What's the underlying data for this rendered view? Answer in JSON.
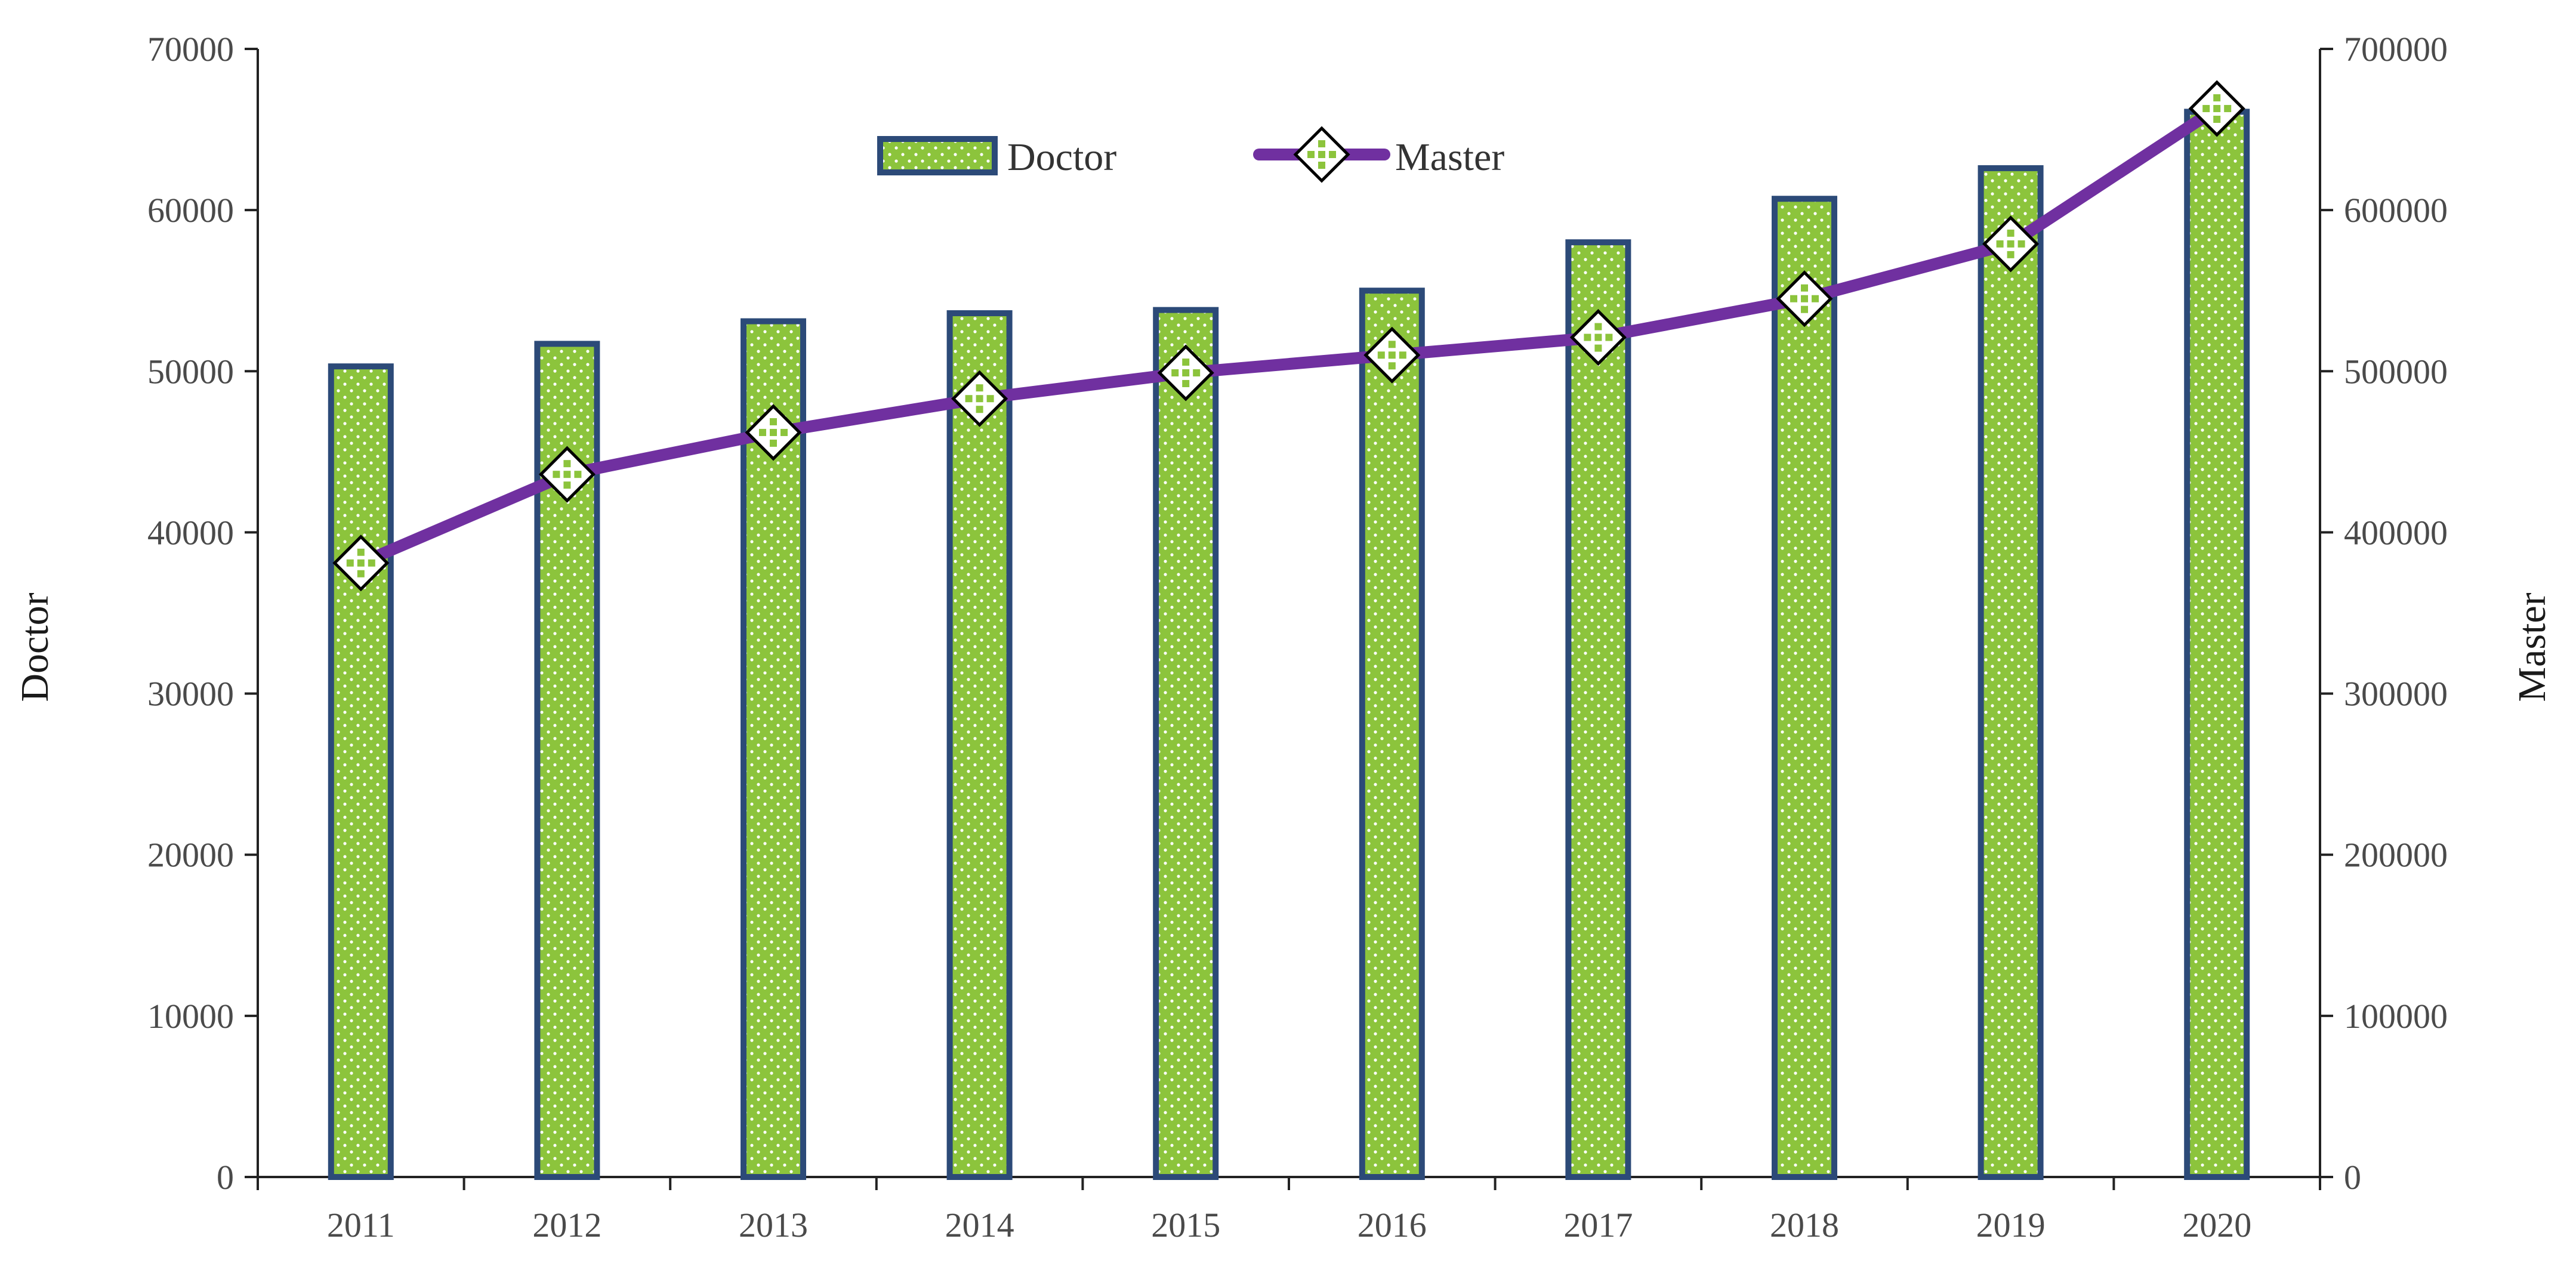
{
  "chart_data": {
    "type": "bar",
    "categories": [
      "2011",
      "2012",
      "2013",
      "2014",
      "2015",
      "2016",
      "2017",
      "2018",
      "2019",
      "2020"
    ],
    "series": [
      {
        "name": "Doctor",
        "type": "bar",
        "axis": "left",
        "values": [
          50300,
          51700,
          53100,
          53600,
          53800,
          55000,
          58000,
          60700,
          62600,
          66100
        ]
      },
      {
        "name": "Master",
        "type": "line",
        "axis": "right",
        "values": [
          381000,
          436000,
          462000,
          483000,
          499000,
          510000,
          521000,
          545000,
          579000,
          663000
        ]
      }
    ],
    "ylabel": "Doctor",
    "y2label": "Master",
    "ylim": [
      0,
      70000
    ],
    "y2lim": [
      0,
      700000
    ],
    "yticks": [
      "0",
      "10000",
      "20000",
      "30000",
      "40000",
      "50000",
      "60000",
      "70000"
    ],
    "y2ticks": [
      "0",
      "100000",
      "200000",
      "300000",
      "400000",
      "500000",
      "600000",
      "700000"
    ],
    "legend": "top-center",
    "grid": false,
    "colors": {
      "bar_fill": "#8cc43c",
      "bar_border": "#2c4a78",
      "bar_dots": "#ffffff",
      "line": "#7030a0",
      "marker_fill": "#ffffff",
      "marker_border": "#000000",
      "marker_dots": "#8cc43c"
    }
  }
}
